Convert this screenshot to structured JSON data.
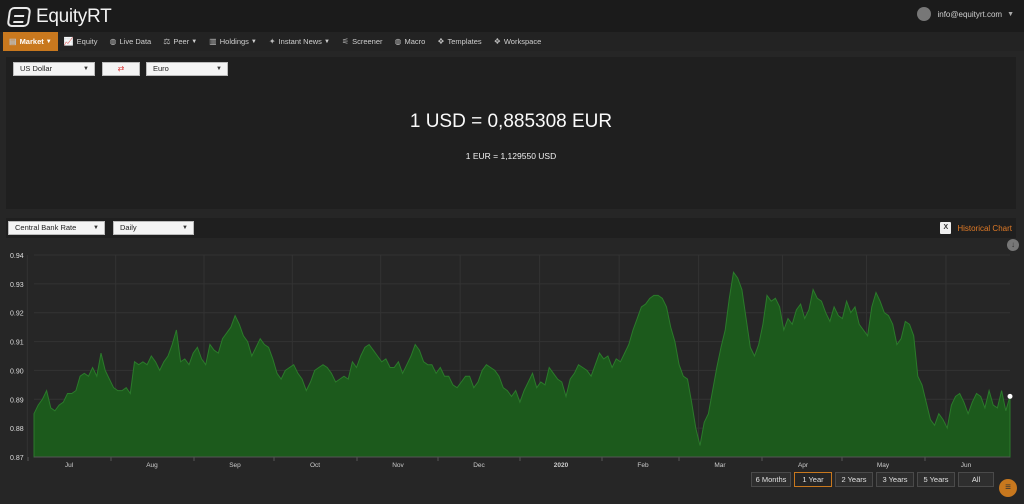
{
  "header": {
    "brand": "EquityRT",
    "user_email": "info@equityrt.com"
  },
  "nav": [
    {
      "label": "Market",
      "icon": "market-icon",
      "dropdown": true,
      "active": true
    },
    {
      "label": "Equity",
      "icon": "chart-icon"
    },
    {
      "label": "Live Data",
      "icon": "globe-icon"
    },
    {
      "label": "Peer",
      "icon": "peer-icon",
      "dropdown": true
    },
    {
      "label": "Holdings",
      "icon": "holdings-icon",
      "dropdown": true
    },
    {
      "label": "Instant News",
      "icon": "news-icon",
      "dropdown": true
    },
    {
      "label": "Screener",
      "icon": "screener-icon"
    },
    {
      "label": "Macro",
      "icon": "globe-icon"
    },
    {
      "label": "Templates",
      "icon": "templates-icon"
    },
    {
      "label": "Workspace",
      "icon": "workspace-icon"
    }
  ],
  "converter": {
    "from_currency": "US Dollar",
    "to_currency": "Euro",
    "rate_text": "1 USD = 0,885308 EUR",
    "inverse_text": "1 EUR = 1,129550 USD"
  },
  "chart_controls": {
    "rate_type": "Central Bank Rate",
    "frequency": "Daily",
    "historical_label": "Historical Chart"
  },
  "ranges": [
    {
      "label": "6 Months"
    },
    {
      "label": "1 Year",
      "active": true
    },
    {
      "label": "2 Years"
    },
    {
      "label": "3 Years"
    },
    {
      "label": "5 Years"
    },
    {
      "label": "All"
    }
  ],
  "colors": {
    "accent": "#c8781e",
    "area_fill": "#1c5a1c",
    "area_line": "#2b7a2b"
  },
  "chart_data": {
    "type": "area",
    "ylim": [
      0.87,
      0.94
    ],
    "yticks": [
      "0.87",
      "0.88",
      "0.89",
      "0.90",
      "0.91",
      "0.92",
      "0.93",
      "0.94"
    ],
    "xticks": [
      "Jul",
      "Aug",
      "Sep",
      "Oct",
      "Nov",
      "Dec",
      "2020",
      "Feb",
      "Mar",
      "Apr",
      "May",
      "Jun"
    ],
    "xtick_pos": [
      0.04,
      0.14,
      0.24,
      0.34,
      0.44,
      0.53,
      0.62,
      0.71,
      0.8,
      0.895,
      0.99,
      1.08
    ],
    "series": [
      {
        "values": [
          0.885,
          0.888,
          0.89,
          0.893,
          0.887,
          0.886,
          0.888,
          0.889,
          0.892,
          0.892,
          0.893,
          0.898,
          0.899,
          0.898,
          0.901,
          0.898,
          0.906,
          0.9,
          0.897,
          0.894,
          0.893,
          0.893,
          0.894,
          0.892,
          0.903,
          0.902,
          0.903,
          0.902,
          0.905,
          0.903,
          0.9,
          0.903,
          0.905,
          0.909,
          0.914,
          0.903,
          0.904,
          0.902,
          0.906,
          0.908,
          0.904,
          0.902,
          0.909,
          0.907,
          0.906,
          0.911,
          0.913,
          0.915,
          0.919,
          0.916,
          0.912,
          0.91,
          0.905,
          0.908,
          0.911,
          0.909,
          0.908,
          0.904,
          0.899,
          0.897,
          0.9,
          0.901,
          0.902,
          0.899,
          0.897,
          0.893,
          0.896,
          0.9,
          0.901,
          0.902,
          0.901,
          0.899,
          0.896,
          0.897,
          0.898,
          0.897,
          0.903,
          0.901,
          0.905,
          0.908,
          0.909,
          0.907,
          0.905,
          0.903,
          0.904,
          0.901,
          0.901,
          0.903,
          0.899,
          0.902,
          0.905,
          0.909,
          0.907,
          0.903,
          0.902,
          0.902,
          0.899,
          0.901,
          0.898,
          0.898,
          0.895,
          0.894,
          0.896,
          0.898,
          0.898,
          0.894,
          0.896,
          0.9,
          0.902,
          0.901,
          0.9,
          0.898,
          0.894,
          0.893,
          0.891,
          0.893,
          0.889,
          0.893,
          0.896,
          0.899,
          0.894,
          0.896,
          0.895,
          0.901,
          0.899,
          0.897,
          0.896,
          0.891,
          0.897,
          0.899,
          0.902,
          0.901,
          0.9,
          0.898,
          0.902,
          0.906,
          0.904,
          0.905,
          0.901,
          0.904,
          0.903,
          0.906,
          0.909,
          0.914,
          0.918,
          0.922,
          0.923,
          0.925,
          0.926,
          0.926,
          0.925,
          0.922,
          0.915,
          0.91,
          0.902,
          0.898,
          0.897,
          0.889,
          0.88,
          0.874,
          0.882,
          0.885,
          0.893,
          0.901,
          0.908,
          0.914,
          0.925,
          0.934,
          0.932,
          0.928,
          0.918,
          0.908,
          0.905,
          0.909,
          0.916,
          0.926,
          0.924,
          0.925,
          0.922,
          0.914,
          0.918,
          0.916,
          0.921,
          0.923,
          0.918,
          0.921,
          0.928,
          0.925,
          0.924,
          0.92,
          0.917,
          0.922,
          0.919,
          0.918,
          0.924,
          0.92,
          0.922,
          0.916,
          0.914,
          0.912,
          0.922,
          0.927,
          0.924,
          0.92,
          0.919,
          0.916,
          0.909,
          0.911,
          0.917,
          0.916,
          0.912,
          0.898,
          0.895,
          0.889,
          0.883,
          0.881,
          0.885,
          0.883,
          0.88,
          0.888,
          0.891,
          0.892,
          0.889,
          0.885,
          0.889,
          0.892,
          0.891,
          0.887,
          0.893,
          0.888,
          0.887,
          0.893,
          0.886,
          0.891
        ]
      }
    ]
  }
}
